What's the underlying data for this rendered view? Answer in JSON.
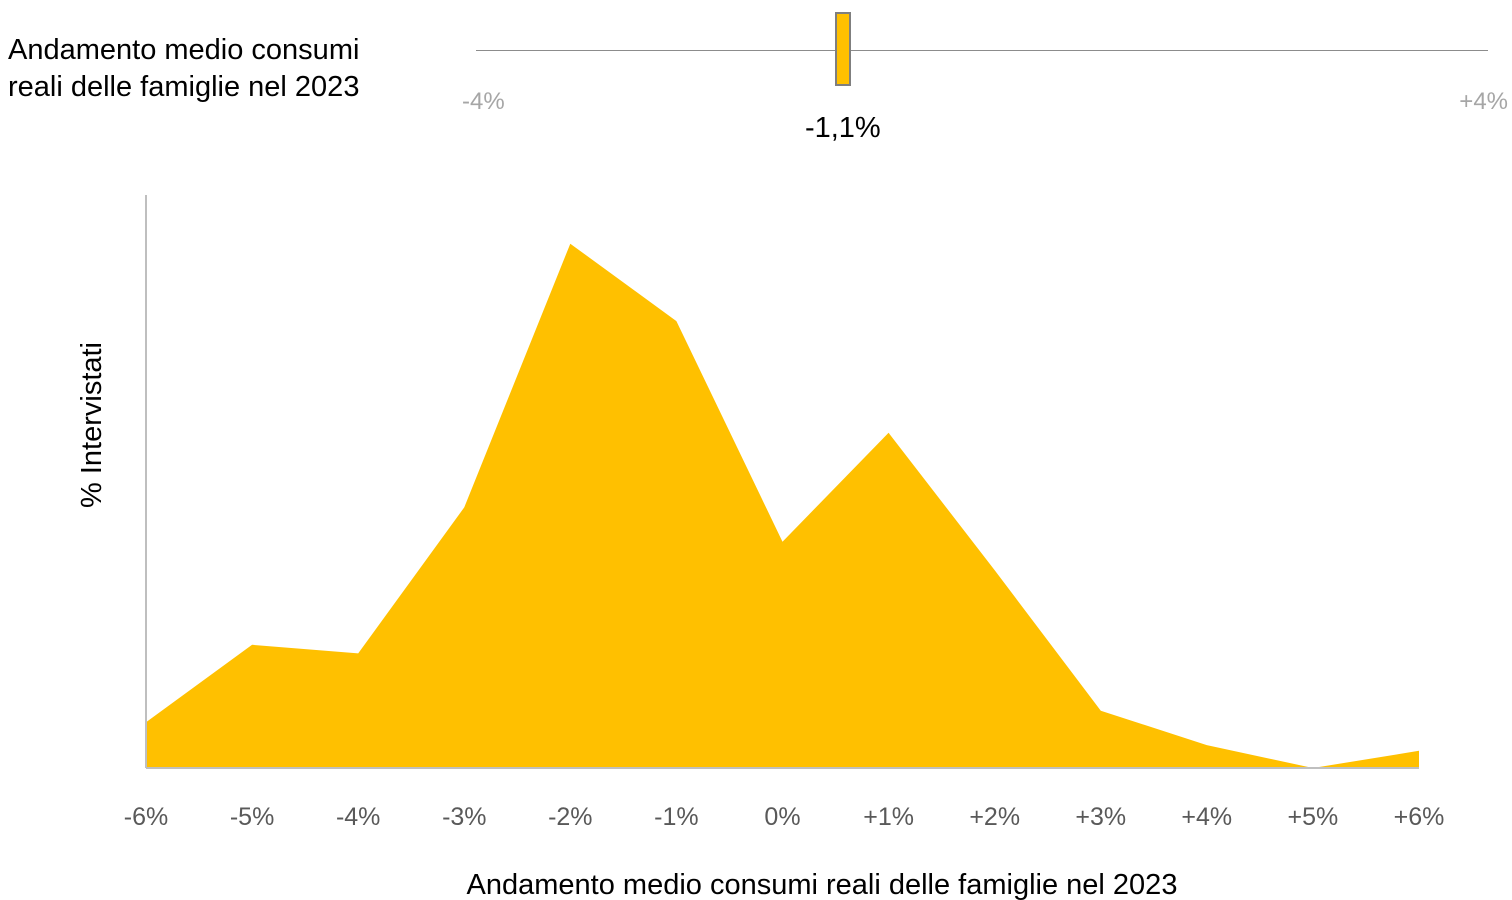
{
  "indicator": {
    "label_line1": "Andamento medio consumi",
    "label_line2": "reali delle famiglie nel 2023",
    "min_label": "-4%",
    "max_label": "+4%",
    "min": -4,
    "max": 4,
    "value": -1.1,
    "value_label": "-1,1%",
    "marker_color": "#ffc000"
  },
  "chart_data": {
    "type": "area",
    "x": [
      "-6%",
      "-5%",
      "-4%",
      "-3%",
      "-2%",
      "-1%",
      "0%",
      "+1%",
      "+2%",
      "+3%",
      "+4%",
      "+5%",
      "+6%"
    ],
    "values": [
      8,
      21.5,
      20,
      45.5,
      91.5,
      78,
      39.5,
      58.5,
      34.5,
      10,
      4,
      0,
      3
    ],
    "ylim": [
      0,
      100
    ],
    "xlabel": "Andamento medio consumi reali delle famiglie nel 2023",
    "ylabel": "% Intervistati",
    "fill_color": "#ffc000",
    "axis_color": "#bfbfbf",
    "tick_label_color": "#595959",
    "grid": false,
    "y_tick_labels": false
  }
}
